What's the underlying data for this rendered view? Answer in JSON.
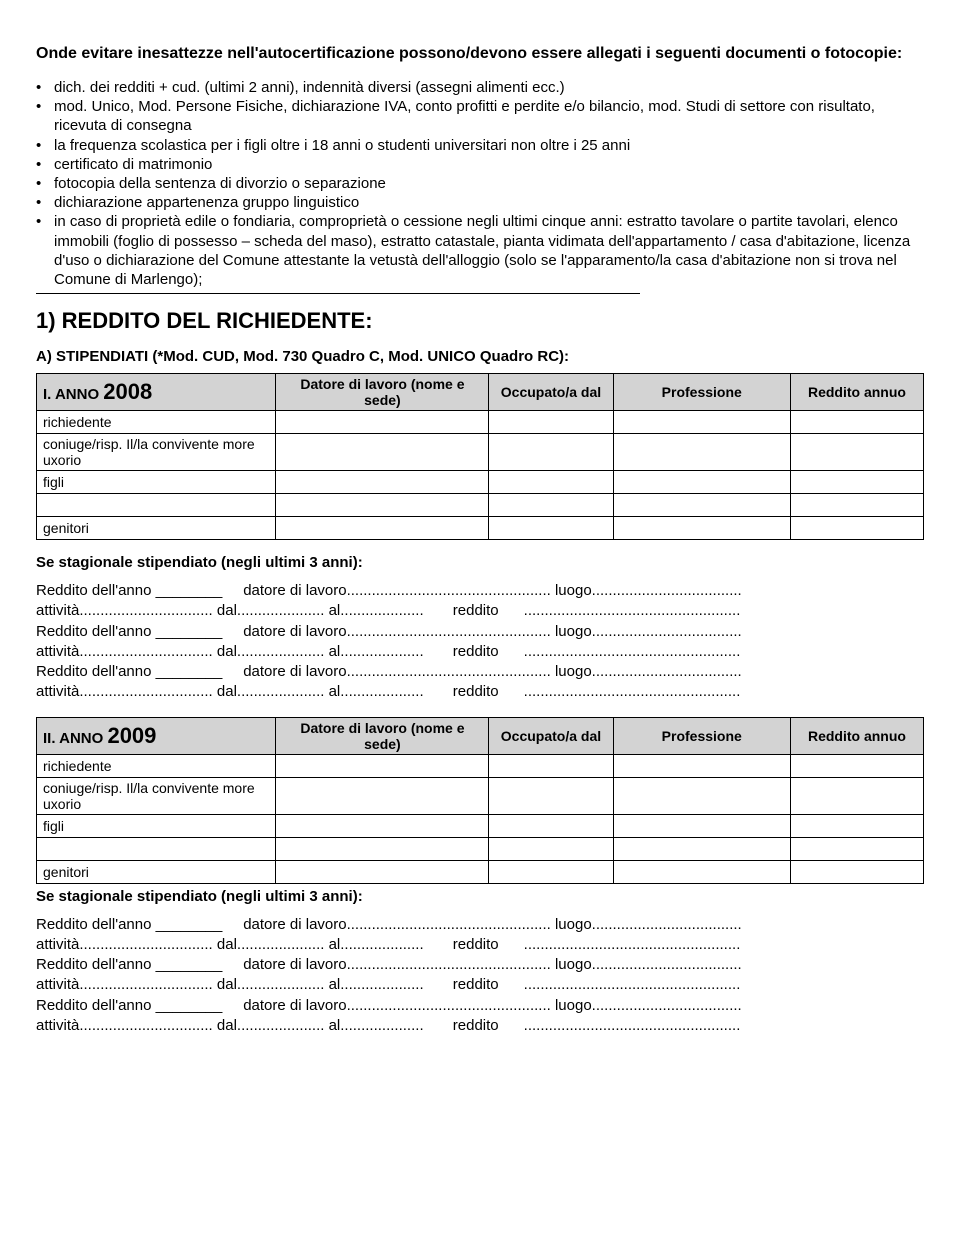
{
  "intro": "Onde evitare inesattezze nell'autocertificazione possono/devono essere allegati i seguenti documenti o fotocopie:",
  "bullets": {
    "b1": "dich. dei redditi + cud. (ultimi 2 anni), indennità diversi (assegni alimenti ecc.)",
    "b2": "mod. Unico, Mod. Persone Fisiche, dichiarazione IVA, conto profitti e perdite e/o bilancio, mod. Studi di settore con risultato, ricevuta di consegna",
    "b3": "la frequenza scolastica per i figli oltre i 18 anni o studenti universitari non oltre i 25 anni",
    "b4": "certificato di matrimonio",
    "b5": "fotocopia della sentenza di divorzio o separazione",
    "b6": "dichiarazione appartenenza gruppo linguistico",
    "b7": "in caso di proprietà edile o fondiaria, comproprietà o cessione negli ultimi cinque anni: estratto tavolare o partite tavolari, elenco immobili (foglio di possesso – scheda del maso), estratto catastale, pianta vidimata dell'appartamento / casa d'abitazione, licenza d'uso o dichiarazione del Comune attestante la vetustà dell'alloggio (solo se l'apparamento/la casa d'abitazione non si trova nel Comune di Marlengo);"
  },
  "section1": {
    "heading": "1)    REDDITO DEL RICHIEDENTE:",
    "subA": "A) STIPENDIATI (*Mod. CUD, Mod. 730 Quadro C, Mod. UNICO Quadro RC):"
  },
  "tableHeaders": {
    "datore": "Datore di lavoro (nome e sede)",
    "occupato": "Occupato/a dal",
    "professione": "Professione",
    "reddito": "Reddito annuo"
  },
  "tableRows": {
    "richiedente": "richiedente",
    "coniuge": "coniuge/risp. Il/la convivente more uxorio",
    "figli": "figli",
    "blank": "",
    "genitori": "genitori"
  },
  "table1": {
    "prefix": "I. ANNO ",
    "year": "2008"
  },
  "table2": {
    "prefix": "II. ANNO ",
    "year": "2009"
  },
  "seasonal": {
    "title": "Se stagionale stipendiato (negli ultimi 3 anni):",
    "line1": "Reddito dell'anno ________     datore di lavoro................................................. luogo....................................",
    "line2": "attività................................ dal..................... al....................       reddito      ....................................................",
    "line1b": "Reddito dell'anno ________     datore di lavoro................................................. luogo....................................",
    "line2b": "attività................................ dal..................... al....................       reddito      ....................................................",
    "line1c": "Reddito dell'anno ________     datore di lavoro................................................. luogo....................................",
    "line2c": "attività................................ dal..................... al....................       reddito      ...................................................."
  }
}
